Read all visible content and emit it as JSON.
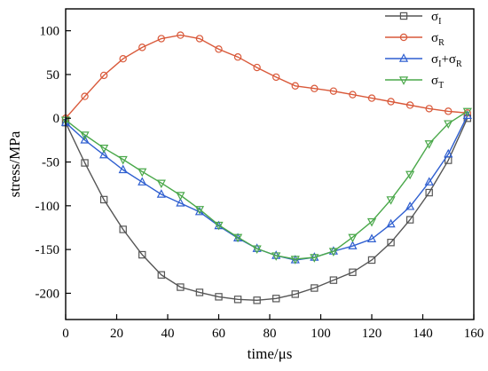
{
  "chart_data": {
    "type": "line",
    "title": "",
    "xlabel": "time/μs",
    "ylabel": "stress/MPa",
    "xlim": [
      0,
      160
    ],
    "ylim": [
      -230,
      125
    ],
    "xticks": [
      0,
      20,
      40,
      60,
      80,
      100,
      120,
      140,
      160
    ],
    "yticks": [
      -200,
      -150,
      -100,
      -50,
      0,
      50,
      100
    ],
    "grid": false,
    "legend_position": "top-right",
    "series": [
      {
        "name": "σI",
        "name_base": "σ",
        "name_sub": "I",
        "color": "#555555",
        "marker": "square",
        "x": [
          0,
          7.5,
          15,
          22.5,
          30,
          37.5,
          45,
          52.5,
          60,
          67.5,
          75,
          82.5,
          90,
          97.5,
          105,
          112.5,
          120,
          127.5,
          135,
          142.5,
          150,
          157.5
        ],
        "y": [
          -5,
          -51,
          -93,
          -127,
          -156,
          -179,
          -193,
          -199,
          -204,
          -207,
          -208,
          -206,
          -201,
          -194,
          -185,
          -176,
          -162,
          -142,
          -116,
          -85,
          -48,
          0
        ]
      },
      {
        "name": "σR",
        "name_base": "σ",
        "name_sub": "R",
        "color": "#d9593a",
        "marker": "circle",
        "x": [
          0,
          7.5,
          15,
          22.5,
          30,
          37.5,
          45,
          52.5,
          60,
          67.5,
          75,
          82.5,
          90,
          97.5,
          105,
          112.5,
          120,
          127.5,
          135,
          142.5,
          150,
          157.5
        ],
        "y": [
          0,
          25,
          49,
          68,
          81,
          91,
          95,
          91,
          79,
          70,
          58,
          47,
          37,
          34,
          31,
          27,
          23,
          19,
          15,
          11,
          8,
          6
        ]
      },
      {
        "name": "σI+σR",
        "name_parts": [
          [
            "σ",
            ""
          ],
          [
            "I",
            "sub"
          ],
          [
            "+σ",
            ""
          ],
          [
            "R",
            "sub"
          ]
        ],
        "color": "#2f5fd0",
        "marker": "triangle-up",
        "x": [
          0,
          7.5,
          15,
          22.5,
          30,
          37.5,
          45,
          52.5,
          60,
          67.5,
          75,
          82.5,
          90,
          97.5,
          105,
          112.5,
          120,
          127.5,
          135,
          142.5,
          150,
          157.5
        ],
        "y": [
          -5,
          -25,
          -42,
          -59,
          -73,
          -87,
          -97,
          -107,
          -123,
          -137,
          -149,
          -157,
          -162,
          -159,
          -152,
          -146,
          -138,
          -121,
          -101,
          -73,
          -41,
          3
        ]
      },
      {
        "name": "σT",
        "name_base": "σ",
        "name_sub": "T",
        "color": "#4aa84a",
        "marker": "triangle-down",
        "x": [
          0,
          7.5,
          15,
          22.5,
          30,
          37.5,
          45,
          52.5,
          60,
          67.5,
          75,
          82.5,
          90,
          97.5,
          105,
          112.5,
          120,
          127.5,
          135,
          142.5,
          150,
          157.5
        ],
        "y": [
          -2,
          -19,
          -34,
          -47,
          -61,
          -74,
          -88,
          -104,
          -122,
          -136,
          -149,
          -157,
          -161,
          -159,
          -152,
          -136,
          -118,
          -93,
          -64,
          -29,
          -6,
          8
        ]
      }
    ]
  }
}
